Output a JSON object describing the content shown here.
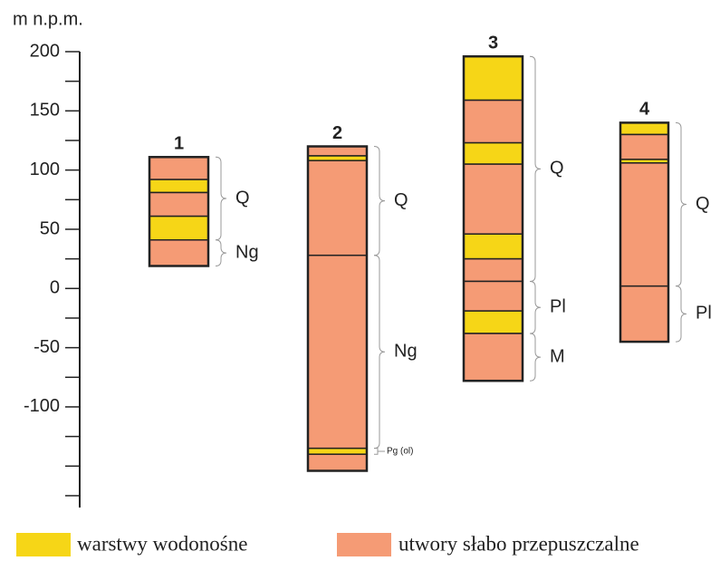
{
  "axis": {
    "label": "m n.p.m.",
    "ylim": [
      -185,
      200
    ],
    "yticks": [
      -100,
      -50,
      0,
      50,
      100,
      150,
      200
    ],
    "minor_ticks": [
      -175,
      -150,
      -125,
      -75,
      -25,
      25,
      75,
      125,
      175
    ]
  },
  "columns": [
    {
      "name": "1",
      "boundaries": [
        111,
        92,
        81,
        61,
        41,
        19
      ],
      "colors": [
        "#f59b75",
        "#f6d617",
        "#f59b75",
        "#f6d617",
        "#f59b75"
      ],
      "brackets": [
        {
          "label": "Q",
          "top": 111,
          "bottom": 41
        },
        {
          "label": "Ng",
          "top": 41,
          "bottom": 19
        }
      ]
    },
    {
      "name": "2",
      "boundaries": [
        120,
        112,
        108,
        28,
        -135,
        -140,
        -154
      ],
      "colors": [
        "#f59b75",
        "#f6d617",
        "#f59b75",
        "#f59b75",
        "#f6d617",
        "#f59b75"
      ],
      "brackets": [
        {
          "label": "Q",
          "top": 120,
          "bottom": 28
        },
        {
          "label": "Ng",
          "top": 28,
          "bottom": -135
        },
        {
          "label": "Pg (ol)",
          "top": -135,
          "bottom": -140
        }
      ]
    },
    {
      "name": "3",
      "boundaries": [
        196,
        159,
        123,
        105,
        46,
        25,
        6,
        -19,
        -38,
        -78
      ],
      "colors": [
        "#f6d617",
        "#f59b75",
        "#f6d617",
        "#f59b75",
        "#f6d617",
        "#f59b75",
        "#f59b75",
        "#f6d617",
        "#f59b75"
      ],
      "brackets": [
        {
          "label": "Q",
          "top": 196,
          "bottom": 6
        },
        {
          "label": "Pl",
          "top": 6,
          "bottom": -38
        },
        {
          "label": "M",
          "top": -38,
          "bottom": -78
        }
      ]
    },
    {
      "name": "4",
      "boundaries": [
        140,
        130,
        109,
        106,
        2,
        -45
      ],
      "colors": [
        "#f6d617",
        "#f59b75",
        "#f6d617",
        "#f59b75",
        "#f59b75"
      ],
      "brackets": [
        {
          "label": "Q",
          "top": 140,
          "bottom": 2
        },
        {
          "label": "Pl",
          "top": 2,
          "bottom": -45
        }
      ]
    }
  ],
  "legend": [
    {
      "label": "warstwy wodonośne",
      "color": "#f6d617"
    },
    {
      "label": "utwory słabo przepuszczalne",
      "color": "#f59b75"
    }
  ]
}
